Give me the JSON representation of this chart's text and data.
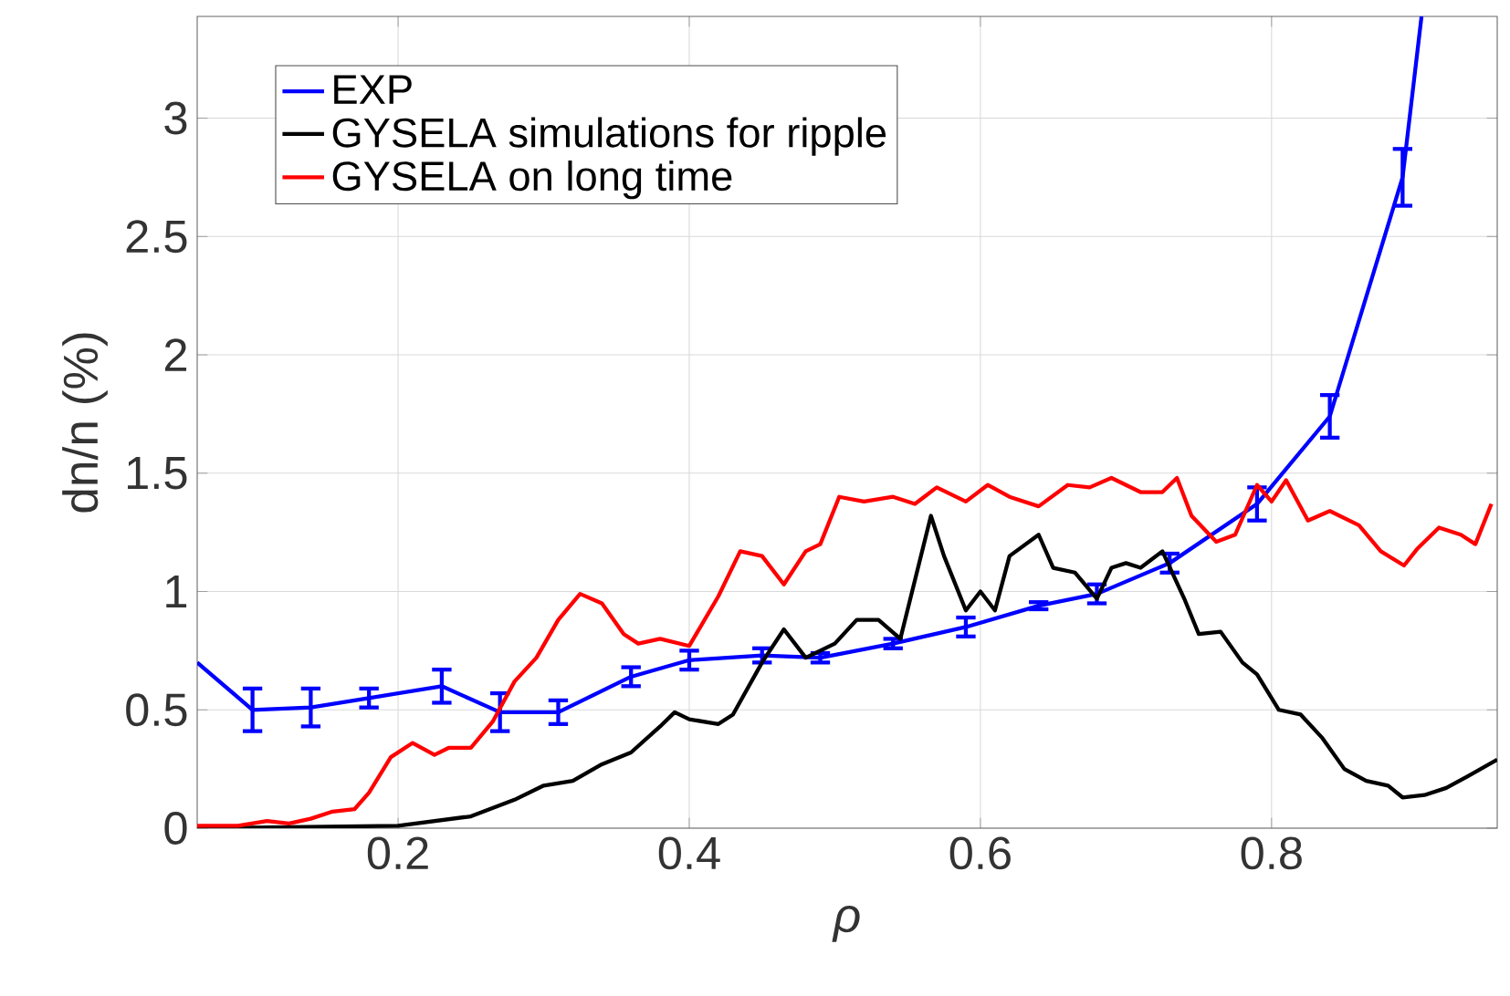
{
  "chart_data": {
    "type": "line",
    "xlabel": "ρ",
    "ylabel": "dn/n (%)",
    "xlim": [
      0.062,
      0.955
    ],
    "ylim": [
      0,
      3.43
    ],
    "xticks": [
      0.2,
      0.4,
      0.6,
      0.8
    ],
    "yticks": [
      0,
      0.5,
      1,
      1.5,
      2,
      2.5,
      3
    ],
    "grid": true,
    "legend": "top left",
    "marker": "none",
    "line_style": "solid",
    "series": [
      {
        "name": "EXP",
        "color": "#0000ff",
        "x": [
          0.062,
          0.1,
          0.14,
          0.18,
          0.23,
          0.27,
          0.31,
          0.36,
          0.4,
          0.45,
          0.49,
          0.54,
          0.59,
          0.64,
          0.68,
          0.73,
          0.79,
          0.84,
          0.89,
          0.903
        ],
        "values": [
          0.7,
          0.5,
          0.51,
          0.55,
          0.6,
          0.49,
          0.49,
          0.64,
          0.71,
          0.73,
          0.72,
          0.78,
          0.85,
          0.94,
          0.99,
          1.12,
          1.37,
          1.74,
          2.75,
          3.43
        ],
        "errors": [
          null,
          0.09,
          0.08,
          0.04,
          0.07,
          0.08,
          0.05,
          0.04,
          0.04,
          0.03,
          0.02,
          0.02,
          0.04,
          0.015,
          0.04,
          0.04,
          0.07,
          0.09,
          0.12,
          null
        ]
      },
      {
        "name": "GYSELA simulations for ripple",
        "color": "#000000",
        "x": [
          0.062,
          0.2,
          0.25,
          0.28,
          0.3,
          0.32,
          0.34,
          0.36,
          0.38,
          0.39,
          0.4,
          0.42,
          0.43,
          0.45,
          0.465,
          0.48,
          0.5,
          0.515,
          0.53,
          0.545,
          0.566,
          0.575,
          0.59,
          0.6,
          0.61,
          0.62,
          0.64,
          0.65,
          0.665,
          0.68,
          0.69,
          0.7,
          0.71,
          0.725,
          0.74,
          0.75,
          0.765,
          0.78,
          0.79,
          0.805,
          0.82,
          0.835,
          0.85,
          0.865,
          0.88,
          0.89,
          0.905,
          0.92,
          0.935,
          0.955
        ],
        "values": [
          0,
          0.01,
          0.05,
          0.12,
          0.18,
          0.2,
          0.27,
          0.32,
          0.43,
          0.49,
          0.46,
          0.44,
          0.48,
          0.7,
          0.84,
          0.72,
          0.78,
          0.88,
          0.88,
          0.8,
          1.32,
          1.15,
          0.92,
          1.0,
          0.92,
          1.15,
          1.24,
          1.1,
          1.08,
          0.97,
          1.1,
          1.12,
          1.1,
          1.17,
          0.97,
          0.82,
          0.83,
          0.7,
          0.65,
          0.5,
          0.48,
          0.38,
          0.25,
          0.2,
          0.18,
          0.13,
          0.14,
          0.17,
          0.22,
          0.29
        ]
      },
      {
        "name": "GYSELA on long time",
        "color": "#ff0000",
        "x": [
          0.062,
          0.09,
          0.11,
          0.125,
          0.14,
          0.155,
          0.17,
          0.18,
          0.195,
          0.21,
          0.225,
          0.235,
          0.25,
          0.265,
          0.28,
          0.295,
          0.31,
          0.325,
          0.34,
          0.355,
          0.365,
          0.38,
          0.4,
          0.42,
          0.435,
          0.45,
          0.465,
          0.48,
          0.49,
          0.503,
          0.52,
          0.54,
          0.555,
          0.57,
          0.59,
          0.605,
          0.62,
          0.64,
          0.66,
          0.675,
          0.69,
          0.71,
          0.725,
          0.735,
          0.745,
          0.762,
          0.775,
          0.79,
          0.8,
          0.81,
          0.825,
          0.84,
          0.86,
          0.875,
          0.891,
          0.9,
          0.915,
          0.93,
          0.94,
          0.951
        ],
        "values": [
          0.01,
          0.01,
          0.03,
          0.02,
          0.04,
          0.07,
          0.08,
          0.15,
          0.3,
          0.36,
          0.31,
          0.34,
          0.34,
          0.45,
          0.62,
          0.72,
          0.88,
          0.99,
          0.95,
          0.82,
          0.78,
          0.8,
          0.77,
          0.98,
          1.17,
          1.15,
          1.03,
          1.17,
          1.2,
          1.4,
          1.38,
          1.4,
          1.37,
          1.44,
          1.38,
          1.45,
          1.4,
          1.36,
          1.45,
          1.44,
          1.48,
          1.42,
          1.42,
          1.48,
          1.32,
          1.21,
          1.24,
          1.45,
          1.38,
          1.47,
          1.3,
          1.34,
          1.28,
          1.17,
          1.11,
          1.18,
          1.27,
          1.24,
          1.2,
          1.37
        ]
      }
    ]
  }
}
